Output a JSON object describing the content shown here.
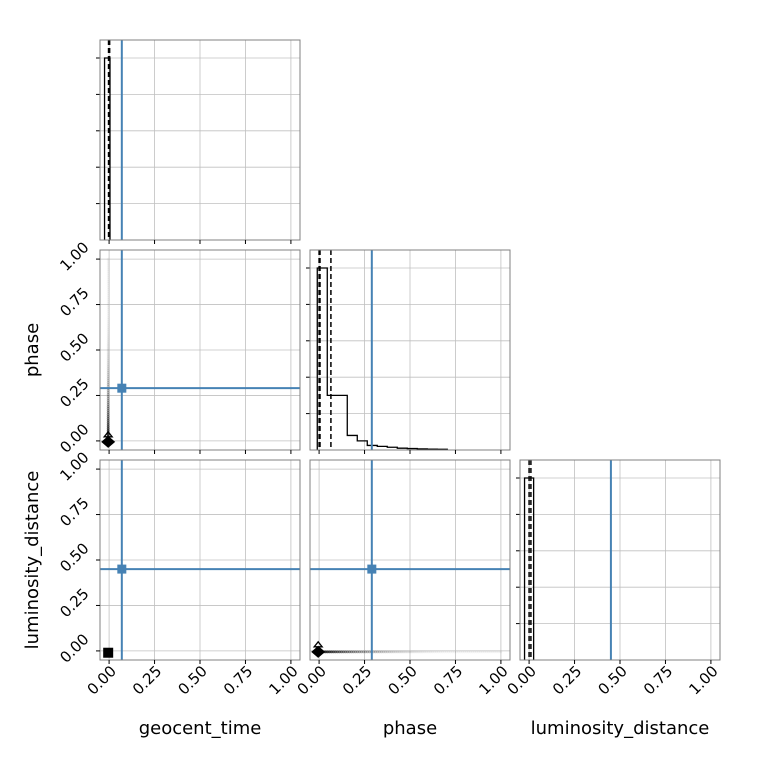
{
  "chart_data": {
    "type": "corner",
    "parameters": [
      "geocent_time",
      "phase",
      "luminosity_distance"
    ],
    "tick_values": [
      0.0,
      0.25,
      0.5,
      0.75,
      1.0
    ],
    "tick_labels": [
      "0.00",
      "0.25",
      "0.50",
      "0.75",
      "1.00"
    ],
    "axis_range": [
      -0.05,
      1.05
    ],
    "grid": true,
    "truth_color": "#4682b4",
    "truths": {
      "geocent_time": 0.07,
      "phase": 0.29,
      "luminosity_distance": 0.45
    },
    "histograms": [
      {
        "parameter": "geocent_time",
        "bin_edges": [
          -0.025,
          0.005
        ],
        "counts": [
          1.0
        ],
        "quantiles": [
          -0.003,
          0.003
        ]
      },
      {
        "parameter": "phase",
        "bin_edges": [
          -0.01,
          0.045,
          0.1,
          0.155,
          0.21,
          0.265,
          0.32,
          0.375,
          0.43,
          0.485,
          0.54,
          0.595,
          0.65,
          0.705
        ],
        "counts": [
          1.0,
          0.3,
          0.3,
          0.08,
          0.05,
          0.025,
          0.02,
          0.015,
          0.01,
          0.008,
          0.006,
          0.005,
          0.004
        ],
        "quantiles": [
          0.0,
          0.005,
          0.065
        ]
      },
      {
        "parameter": "luminosity_distance",
        "bin_edges": [
          -0.025,
          0.025
        ],
        "counts": [
          1.0
        ],
        "quantiles": [
          0.0,
          0.01
        ]
      }
    ],
    "scatter_panels": [
      {
        "x": "geocent_time",
        "y": "phase",
        "core": [
          -0.005,
          -0.005
        ],
        "spread": {
          "axis": "y",
          "from": 0.0,
          "to": 1.0
        }
      },
      {
        "x": "geocent_time",
        "y": "luminosity_distance",
        "core": [
          -0.005,
          -0.01
        ],
        "spread": null
      },
      {
        "x": "phase",
        "y": "luminosity_distance",
        "core": [
          -0.005,
          -0.005
        ],
        "spread": {
          "axis": "x",
          "from": 0.0,
          "to": 1.0
        }
      }
    ]
  }
}
